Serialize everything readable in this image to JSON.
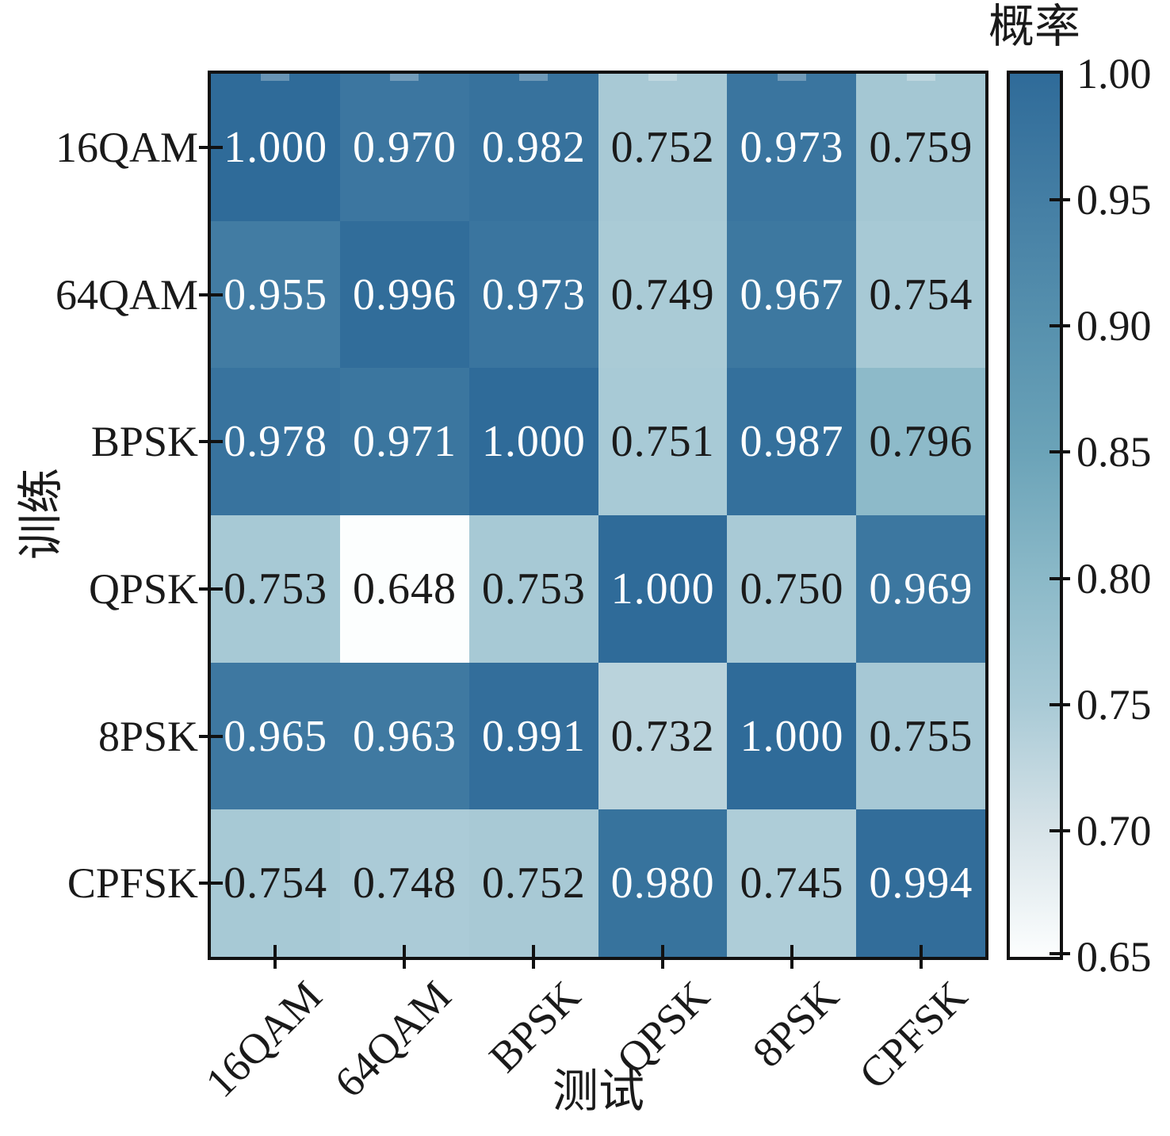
{
  "chart_data": {
    "type": "heatmap",
    "xlabel": "测试",
    "ylabel": "训练",
    "colorbar_label": "概率",
    "x_categories": [
      "16QAM",
      "64QAM",
      "BPSK",
      "QPSK",
      "8PSK",
      "CPFSK"
    ],
    "y_categories": [
      "16QAM",
      "64QAM",
      "BPSK",
      "QPSK",
      "8PSK",
      "CPFSK"
    ],
    "values": [
      [
        1.0,
        0.97,
        0.982,
        0.752,
        0.973,
        0.759
      ],
      [
        0.955,
        0.996,
        0.973,
        0.749,
        0.967,
        0.754
      ],
      [
        0.978,
        0.971,
        1.0,
        0.751,
        0.987,
        0.796
      ],
      [
        0.753,
        0.648,
        0.753,
        1.0,
        0.75,
        0.969
      ],
      [
        0.965,
        0.963,
        0.991,
        0.732,
        1.0,
        0.755
      ],
      [
        0.754,
        0.748,
        0.752,
        0.98,
        0.745,
        0.994
      ]
    ],
    "value_decimals": 3,
    "colorbar_ticks": [
      "1.00",
      "0.95",
      "0.90",
      "0.85",
      "0.80",
      "0.75",
      "0.70",
      "0.65"
    ],
    "colorbar_tick_values": [
      1.0,
      0.95,
      0.9,
      0.85,
      0.8,
      0.75,
      0.7,
      0.65
    ],
    "vmin": 0.65,
    "vmax": 1.0,
    "grid": false,
    "legend_position": "right-colorbar",
    "colormap_stops": [
      {
        "value": 0.65,
        "color": "#fcfefe"
      },
      {
        "value": 0.7,
        "color": "#d7e3e8"
      },
      {
        "value": 0.75,
        "color": "#a9cad6"
      },
      {
        "value": 0.8,
        "color": "#8bb9c8"
      },
      {
        "value": 0.85,
        "color": "#6ba3b8"
      },
      {
        "value": 0.9,
        "color": "#5791ae"
      },
      {
        "value": 0.95,
        "color": "#447ea4"
      },
      {
        "value": 1.0,
        "color": "#2f6b99"
      }
    ],
    "text_color_light": "#ffffff",
    "text_color_dark": "#1a1a1a",
    "text_light_threshold": 0.9,
    "frame_color": "#111111"
  }
}
